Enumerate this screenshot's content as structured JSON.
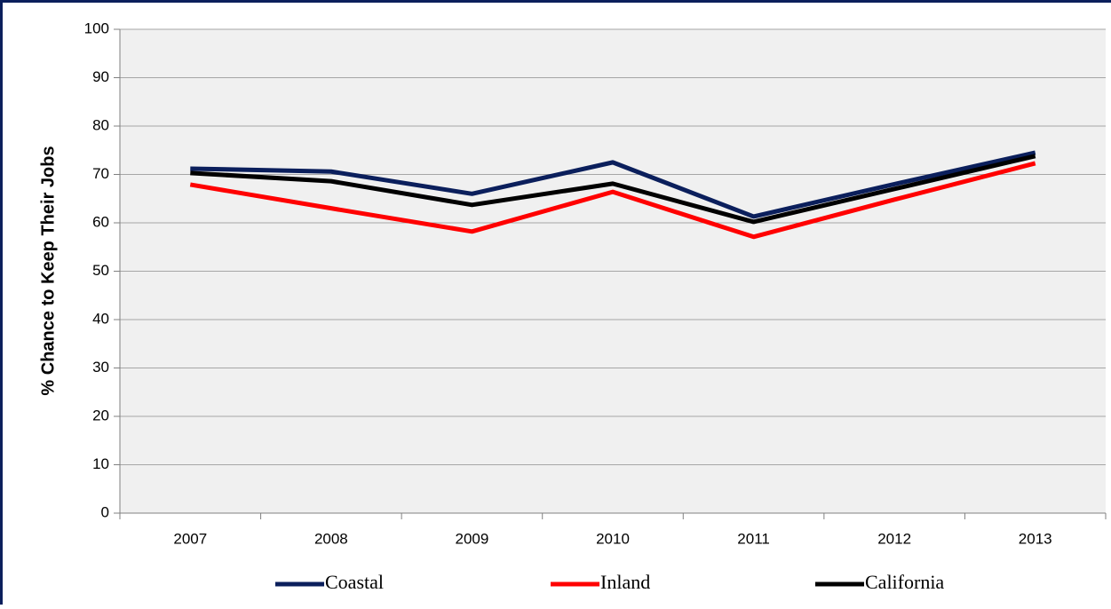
{
  "chart_data": {
    "type": "line",
    "y_label": "% Chance to Keep Their Jobs",
    "categories": [
      "2007",
      "2008",
      "2009",
      "2010",
      "2011",
      "2012",
      "2013"
    ],
    "series": [
      {
        "name": "Coastal",
        "color": "#0b1f5c",
        "values": [
          71.2,
          70.6,
          66,
          72.5,
          61.3,
          68,
          74.5
        ]
      },
      {
        "name": "Inland",
        "color": "#ff0000",
        "values": [
          67.9,
          63,
          58.2,
          66.4,
          57.1,
          64.8,
          72.3
        ]
      },
      {
        "name": "California",
        "color": "#000000",
        "values": [
          70.3,
          68.6,
          63.7,
          68.1,
          60.2,
          67,
          73.8
        ]
      }
    ],
    "ylim": [
      0,
      100
    ],
    "yticks": [
      0,
      10,
      20,
      30,
      40,
      50,
      60,
      70,
      80,
      90,
      100
    ],
    "grid": true,
    "legend": "bottom"
  }
}
